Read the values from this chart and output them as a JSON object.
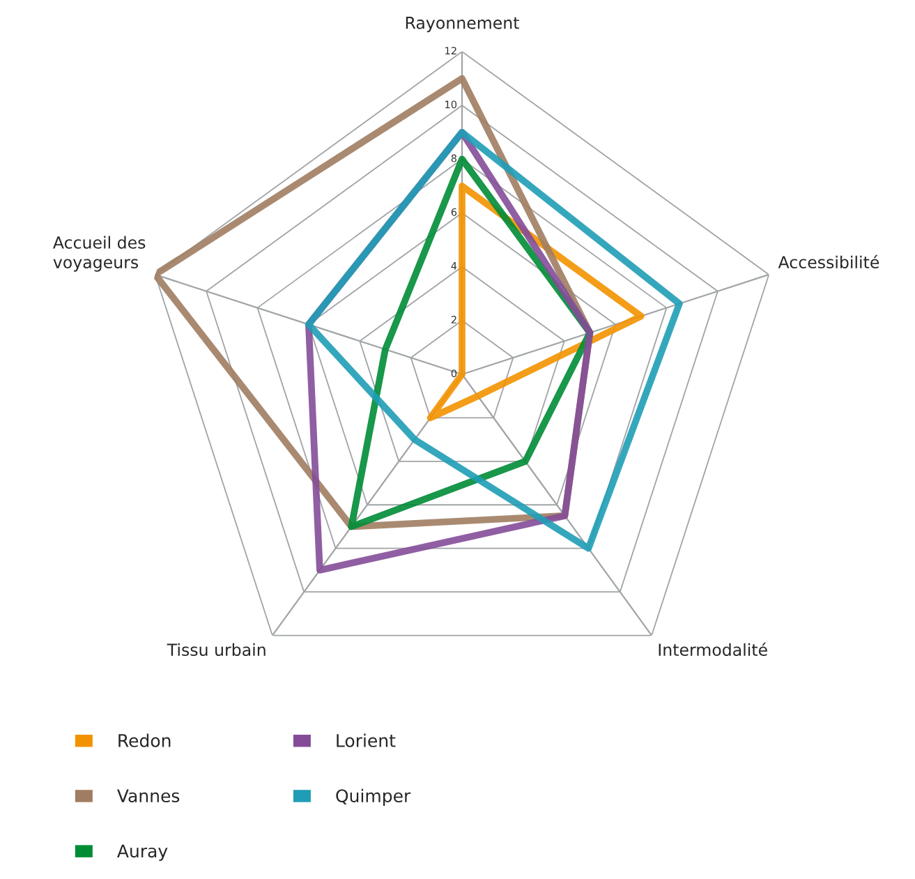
{
  "chart_data": {
    "type": "radar",
    "categories": [
      "Rayonnement",
      "Accessibilité",
      "Intermodalité",
      "Tissu urbain",
      "Accueil des voyageurs"
    ],
    "ylim": [
      0,
      12
    ],
    "yticks": [
      0,
      2,
      4,
      6,
      8,
      10,
      12
    ],
    "grid": true,
    "legend": "bottom",
    "marker": "none",
    "line_style": "solid",
    "series": [
      {
        "name": "Redon",
        "color": "#f39200",
        "values": [
          7,
          7,
          1,
          2,
          0
        ]
      },
      {
        "name": "Vannes",
        "color": "#a07d62",
        "values": [
          11,
          5,
          6.5,
          7,
          12
        ]
      },
      {
        "name": "Auray",
        "color": "#008c36",
        "values": [
          8,
          5,
          4,
          7,
          3
        ]
      },
      {
        "name": "Lorient",
        "color": "#844c98",
        "values": [
          9,
          5,
          6.5,
          9,
          6
        ]
      },
      {
        "name": "Quimper",
        "color": "#1f9db6",
        "values": [
          9,
          8.5,
          8,
          3,
          6
        ]
      }
    ]
  }
}
